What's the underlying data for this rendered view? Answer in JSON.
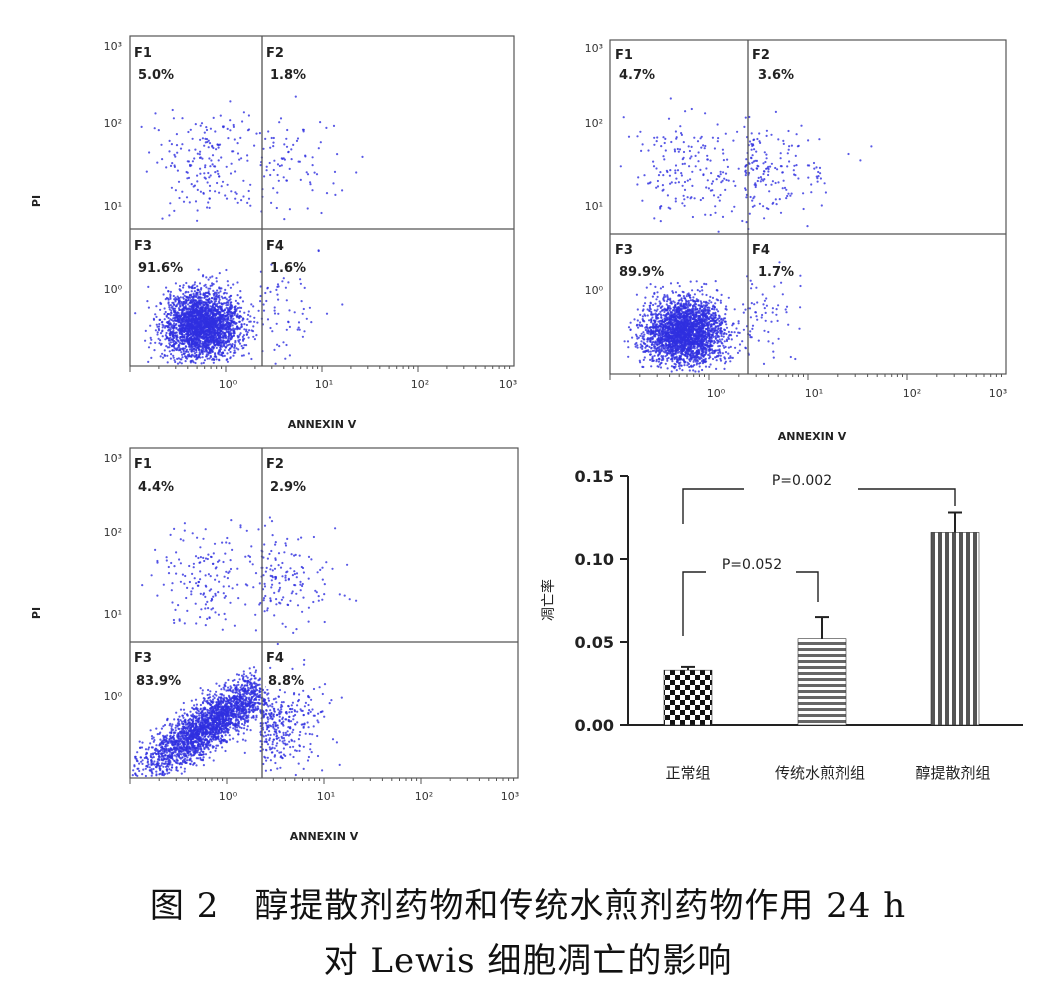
{
  "caption": {
    "line1": "图 2　醇提散剂药物和传统水煎剂药物作用 24 h",
    "line2": "对 Lewis 细胞凋亡的影响"
  },
  "colors": {
    "dots": "#3030e0",
    "axis": "#555555",
    "gate": "#555555",
    "text": "#222222"
  },
  "chart_data": [
    {
      "type": "scatter",
      "panel": "flow-cytometry-1",
      "xlabel": "ANNEXIN V",
      "ylabel": "PI",
      "x_scale": "log",
      "y_scale": "log",
      "xlim": [
        0.1,
        1000
      ],
      "ylim": [
        0.1,
        1000
      ],
      "x_tick_labels": [
        "10⁰",
        "10¹",
        "10²",
        "10³"
      ],
      "y_tick_labels": [
        "10⁰",
        "10¹",
        "10²",
        "10³"
      ],
      "gate": {
        "x": 2.2,
        "y": 5
      },
      "quadrants": [
        {
          "name": "F1",
          "value": "5.0%"
        },
        {
          "name": "F2",
          "value": "1.8%"
        },
        {
          "name": "F3",
          "value": "91.6%"
        },
        {
          "name": "F4",
          "value": "1.6%"
        }
      ]
    },
    {
      "type": "scatter",
      "panel": "flow-cytometry-2",
      "xlabel": "ANNEXIN V",
      "ylabel": "",
      "x_scale": "log",
      "y_scale": "log",
      "xlim": [
        0.1,
        1000
      ],
      "ylim": [
        0.1,
        1000
      ],
      "x_tick_labels": [
        "10⁰",
        "10¹",
        "10²",
        "10³"
      ],
      "y_tick_labels": [
        "10⁰",
        "10¹",
        "10²",
        "10³"
      ],
      "gate": {
        "x": 2.2,
        "y": 5
      },
      "quadrants": [
        {
          "name": "F1",
          "value": "4.7%"
        },
        {
          "name": "F2",
          "value": "3.6%"
        },
        {
          "name": "F3",
          "value": "89.9%"
        },
        {
          "name": "F4",
          "value": "1.7%"
        }
      ]
    },
    {
      "type": "scatter",
      "panel": "flow-cytometry-3",
      "xlabel": "ANNEXIN V",
      "ylabel": "PI",
      "x_scale": "log",
      "y_scale": "log",
      "xlim": [
        0.1,
        1000
      ],
      "ylim": [
        0.1,
        1000
      ],
      "x_tick_labels": [
        "10⁰",
        "10¹",
        "10²",
        "10³"
      ],
      "y_tick_labels": [
        "10⁰",
        "10¹",
        "10²",
        "10³"
      ],
      "gate": {
        "x": 2.2,
        "y": 5
      },
      "quadrants": [
        {
          "name": "F1",
          "value": "4.4%"
        },
        {
          "name": "F2",
          "value": "2.9%"
        },
        {
          "name": "F3",
          "value": "83.9%"
        },
        {
          "name": "F4",
          "value": "8.8%"
        }
      ]
    },
    {
      "type": "bar",
      "panel": "apoptosis-rate-bar",
      "categories": [
        "正常组",
        "传统水煎剂组",
        "醇提散剂组"
      ],
      "values": [
        0.033,
        0.052,
        0.116
      ],
      "errors": [
        0.002,
        0.013,
        0.012
      ],
      "patterns": [
        "checker",
        "horizontal",
        "vertical"
      ],
      "ylabel": "凋亡率",
      "ylim": [
        0,
        0.15
      ],
      "yticks": [
        "0.00",
        "0.05",
        "0.10",
        "0.15"
      ],
      "annotations": [
        {
          "text": "P=0.052",
          "from": 0,
          "to": 1
        },
        {
          "text": "P=0.002",
          "from": 0,
          "to": 2
        }
      ]
    }
  ]
}
